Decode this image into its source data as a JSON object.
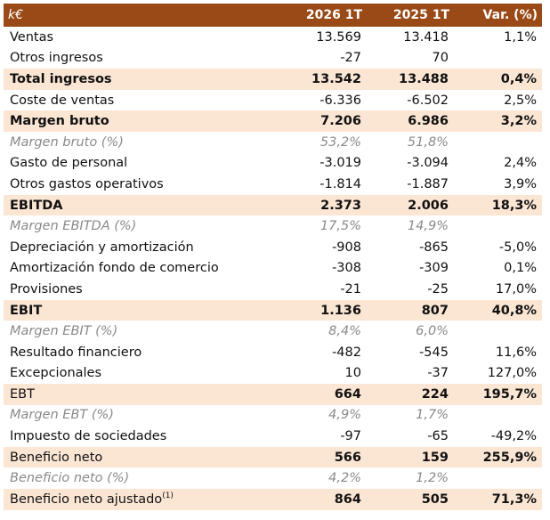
{
  "header": {
    "label": "k€",
    "col1": "2026 1T",
    "col2": "2025 1T",
    "col3": "Var. (%)"
  },
  "rows": [
    {
      "label": "Ventas",
      "v1": "13.569",
      "v2": "13.418",
      "var": "1,1%",
      "style": "normal"
    },
    {
      "label": "Otros ingresos",
      "v1": "-27",
      "v2": "70",
      "var": "",
      "style": "normal"
    },
    {
      "label": "Total ingresos",
      "v1": "13.542",
      "v2": "13.488",
      "var": "0,4%",
      "style": "hl"
    },
    {
      "label": "Coste de ventas",
      "v1": "-6.336",
      "v2": "-6.502",
      "var": "2,5%",
      "style": "normal"
    },
    {
      "label": "Margen bruto",
      "v1": "7.206",
      "v2": "6.986",
      "var": "3,2%",
      "style": "hl"
    },
    {
      "label": "Margen bruto (%)",
      "v1": "53,2%",
      "v2": "51,8%",
      "var": "",
      "style": "pct"
    },
    {
      "label": "Gasto de personal",
      "v1": "-3.019",
      "v2": "-3.094",
      "var": "2,4%",
      "style": "normal"
    },
    {
      "label": "Otros gastos operativos",
      "v1": "-1.814",
      "v2": "-1.887",
      "var": "3,9%",
      "style": "normal"
    },
    {
      "label": "EBITDA",
      "v1": "2.373",
      "v2": "2.006",
      "var": "18,3%",
      "style": "hl"
    },
    {
      "label": "Margen EBITDA (%)",
      "v1": "17,5%",
      "v2": "14,9%",
      "var": "",
      "style": "pct"
    },
    {
      "label": "Depreciación y amortización",
      "v1": "-908",
      "v2": "-865",
      "var": "-5,0%",
      "style": "normal"
    },
    {
      "label": "Amortización fondo de comercio",
      "v1": "-308",
      "v2": "-309",
      "var": "0,1%",
      "style": "normal"
    },
    {
      "label": "Provisiones",
      "v1": "-21",
      "v2": "-25",
      "var": "17,0%",
      "style": "normal"
    },
    {
      "label": "EBIT",
      "v1": "1.136",
      "v2": "807",
      "var": "40,8%",
      "style": "hl"
    },
    {
      "label": "Margen EBIT (%)",
      "v1": "8,4%",
      "v2": "6,0%",
      "var": "",
      "style": "pct"
    },
    {
      "label": "Resultado financiero",
      "v1": "-482",
      "v2": "-545",
      "var": "11,6%",
      "style": "normal"
    },
    {
      "label": "Excepcionales",
      "v1": "10",
      "v2": "-37",
      "var": "127,0%",
      "style": "normal"
    },
    {
      "label": "EBT",
      "v1": "664",
      "v2": "224",
      "var": "195,7%",
      "style": "hl-plain-label"
    },
    {
      "label": "Margen EBT (%)",
      "v1": "4,9%",
      "v2": "1,7%",
      "var": "",
      "style": "pct"
    },
    {
      "label": "Impuesto de sociedades",
      "v1": "-97",
      "v2": "-65",
      "var": "-49,2%",
      "style": "normal"
    },
    {
      "label": "Beneficio neto",
      "v1": "566",
      "v2": "159",
      "var": "255,9%",
      "style": "hl-plain-label"
    },
    {
      "label": "Beneficio neto (%)",
      "v1": "4,2%",
      "v2": "1,2%",
      "var": "",
      "style": "pct"
    },
    {
      "label": "Beneficio neto ajustado",
      "label_sup": "(1)",
      "v1": "864",
      "v2": "505",
      "var": "71,3%",
      "style": "hl-plain-label"
    }
  ]
}
